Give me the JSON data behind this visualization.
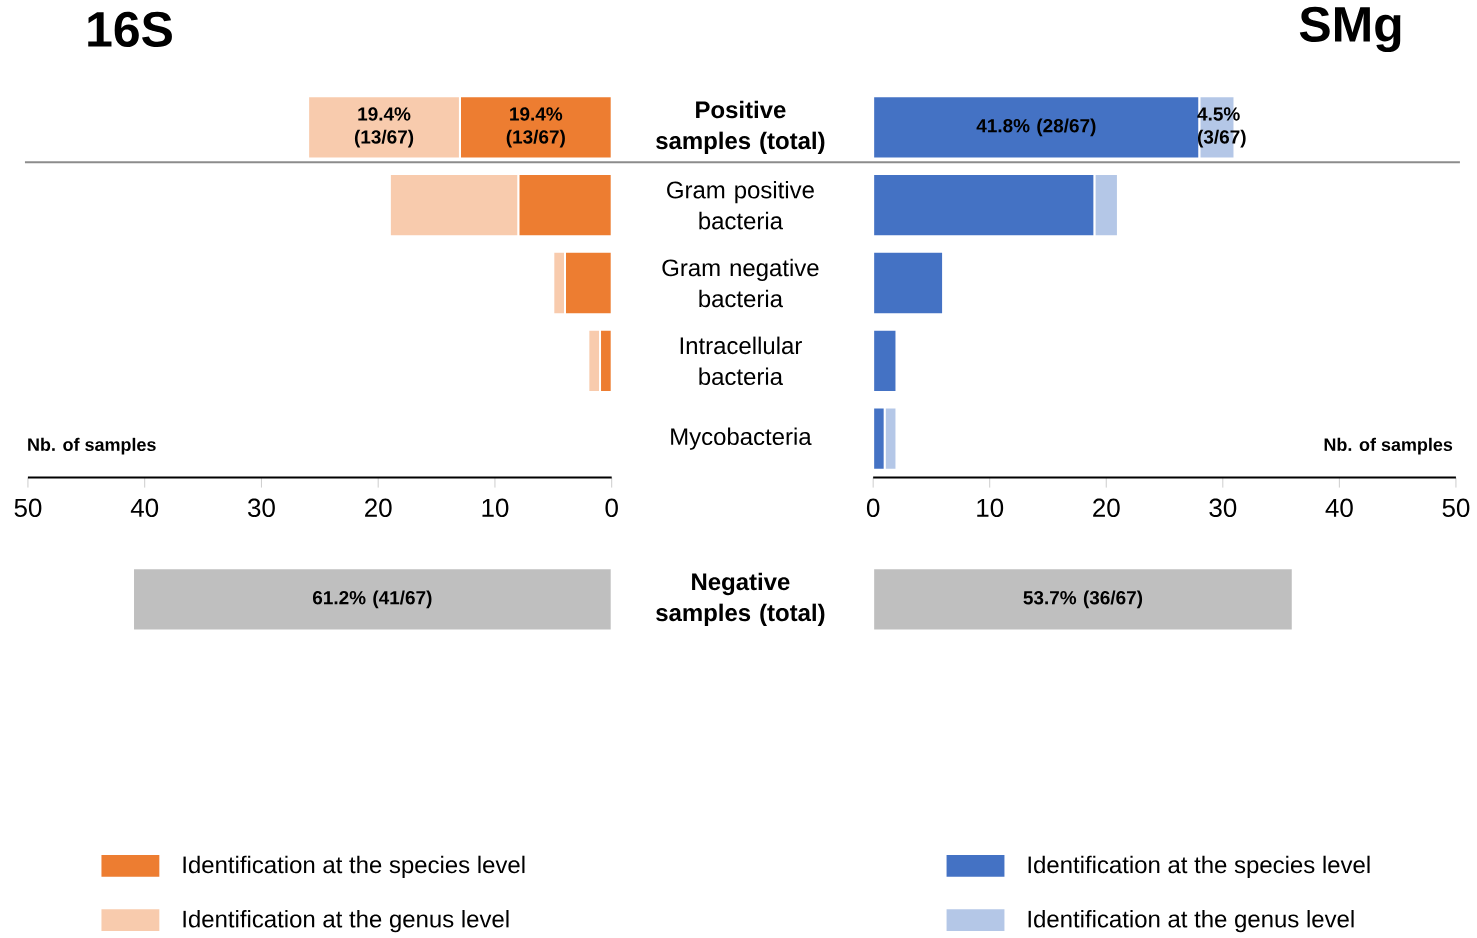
{
  "chart_data": [
    {
      "type": "bar",
      "title": "16S",
      "orientation": "horizontal",
      "stacked": true,
      "xlabel": "Nb. of samples",
      "categories": [
        "Positive samples (total)",
        "Gram positive bacteria",
        "Gram negative bacteria",
        "Intracellular bacteria",
        "Mycobacteria"
      ],
      "xlim": [
        50,
        0
      ],
      "xticks": [
        50,
        40,
        30,
        20,
        10,
        0
      ],
      "legend": "bottom left",
      "series": [
        {
          "name": "Identification at the species level",
          "color": "#ed7d31",
          "values": [
            13,
            8,
            4,
            1,
            0
          ],
          "value_labels": [
            "19.4% (13/67)",
            null,
            null,
            null,
            null
          ]
        },
        {
          "name": "Identification at the genus level",
          "color": "#f8cbad",
          "values": [
            13,
            11,
            1,
            1,
            0
          ],
          "value_labels": [
            "19.4% (13/67)",
            null,
            null,
            null,
            null
          ]
        }
      ]
    },
    {
      "type": "bar",
      "title": "SMg",
      "orientation": "horizontal",
      "stacked": true,
      "xlabel": "Nb. of samples",
      "categories": [
        null,
        null,
        null,
        null,
        null
      ],
      "tick_labels": "x",
      "xlim": [
        0,
        50
      ],
      "xticks": [
        0,
        10,
        20,
        30,
        40,
        50
      ],
      "legend": "bottom left",
      "series": [
        {
          "name": "Identification at the species level",
          "color": "#4472c4",
          "values": [
            28,
            19,
            6,
            2,
            1
          ],
          "value_labels": [
            "41.8% (28/67)",
            null,
            null,
            null,
            null
          ]
        },
        {
          "name": "Identification at the genus level",
          "color": "#b4c7e7",
          "values": [
            3,
            2,
            0,
            0,
            1
          ],
          "value_labels": [
            "4.5% (3/67)",
            null,
            null,
            null,
            null
          ]
        }
      ]
    },
    {
      "type": "bar",
      "orientation": "horizontal",
      "categories": [
        "Negative samples (total)"
      ],
      "tick_labels": "y",
      "xlim": [
        50,
        0
      ],
      "series": [
        {
          "color": "#bfbfbf",
          "values": [
            41
          ],
          "value_labels": [
            "61.2% (41/67)"
          ]
        }
      ]
    },
    {
      "type": "bar",
      "orientation": "horizontal",
      "categories": [
        null
      ],
      "tick_labels": false,
      "xlim": [
        0,
        50
      ],
      "series": [
        {
          "color": "#bfbfbf",
          "values": [
            36
          ],
          "value_labels": [
            "53.7% (36/67)"
          ]
        }
      ]
    }
  ]
}
